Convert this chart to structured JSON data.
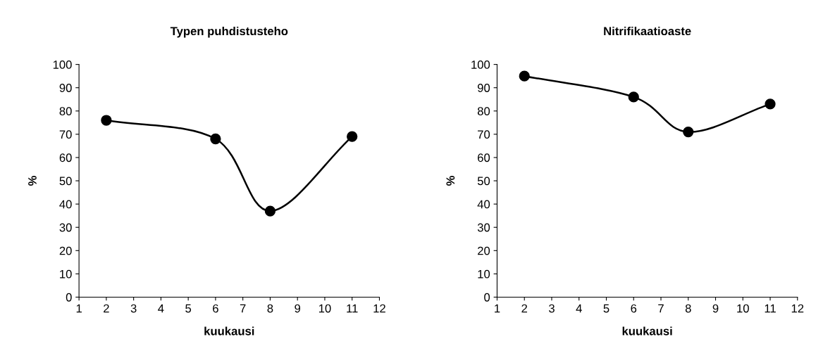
{
  "chart_data": [
    {
      "type": "line",
      "title": "Typen puhdistusteho",
      "xlabel": "kuukausi",
      "ylabel": "%",
      "x": [
        2,
        6,
        8,
        11
      ],
      "series": [
        {
          "color": "#000000",
          "values": [
            76,
            68,
            37,
            69
          ]
        }
      ],
      "xlim": [
        1,
        12
      ],
      "xticks": [
        1,
        2,
        3,
        4,
        5,
        6,
        7,
        8,
        9,
        10,
        11,
        12
      ],
      "ylim": [
        0,
        100
      ],
      "yticks": [
        0,
        10,
        20,
        30,
        40,
        50,
        60,
        70,
        80,
        90,
        100
      ],
      "marker": "circle",
      "line_style": "solid",
      "grid": false,
      "legend": false
    },
    {
      "type": "line",
      "title": "Nitrifikaatioaste",
      "xlabel": "kuukausi",
      "ylabel": "%",
      "x": [
        2,
        6,
        8,
        11
      ],
      "series": [
        {
          "color": "#000000",
          "values": [
            95,
            86,
            71,
            83
          ]
        }
      ],
      "xlim": [
        1,
        12
      ],
      "xticks": [
        1,
        2,
        3,
        4,
        5,
        6,
        7,
        8,
        9,
        10,
        11,
        12
      ],
      "ylim": [
        0,
        100
      ],
      "yticks": [
        0,
        10,
        20,
        30,
        40,
        50,
        60,
        70,
        80,
        90,
        100
      ],
      "marker": "circle",
      "line_style": "solid",
      "grid": false,
      "legend": false
    }
  ]
}
